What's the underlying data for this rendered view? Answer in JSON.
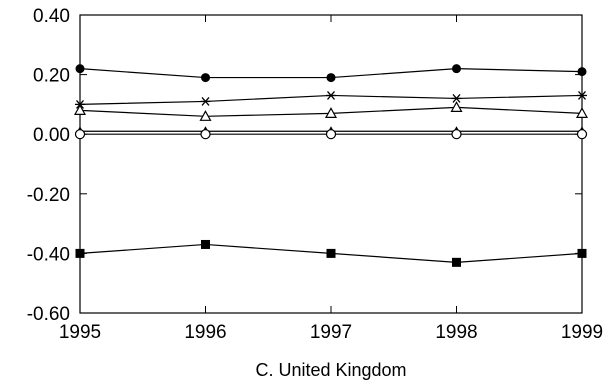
{
  "chart_data": {
    "type": "line",
    "title": "",
    "caption": "C. United Kingdom",
    "xlabel": "",
    "ylabel": "",
    "x": [
      1995,
      1996,
      1997,
      1998,
      1999
    ],
    "xlim": [
      1995,
      1999
    ],
    "ylim": [
      -0.6,
      0.4
    ],
    "y_ticks": [
      "0.40",
      "0.20",
      "0.00",
      "-0.20",
      "-0.40",
      "-0.60"
    ],
    "y_tick_values": [
      0.4,
      0.2,
      0.0,
      -0.2,
      -0.4,
      -0.6
    ],
    "x_ticks": [
      "1995",
      "1996",
      "1997",
      "1998",
      "1999"
    ],
    "grid": false,
    "legend": "none",
    "series": [
      {
        "marker": "filled-circle",
        "values": [
          0.22,
          0.19,
          0.19,
          0.22,
          0.21
        ]
      },
      {
        "marker": "asterisk",
        "values": [
          0.1,
          0.11,
          0.13,
          0.12,
          0.13
        ]
      },
      {
        "marker": "open-triangle",
        "values": [
          0.08,
          0.06,
          0.07,
          0.09,
          0.07
        ]
      },
      {
        "marker": "filled-triangle",
        "values": [
          0.01,
          0.01,
          0.01,
          0.01,
          0.01
        ]
      },
      {
        "marker": "open-circle",
        "values": [
          0.0,
          0.0,
          0.0,
          0.0,
          0.0
        ]
      },
      {
        "marker": "filled-square",
        "values": [
          -0.4,
          -0.37,
          -0.4,
          -0.43,
          -0.4
        ]
      }
    ],
    "line_color": "#000000"
  }
}
